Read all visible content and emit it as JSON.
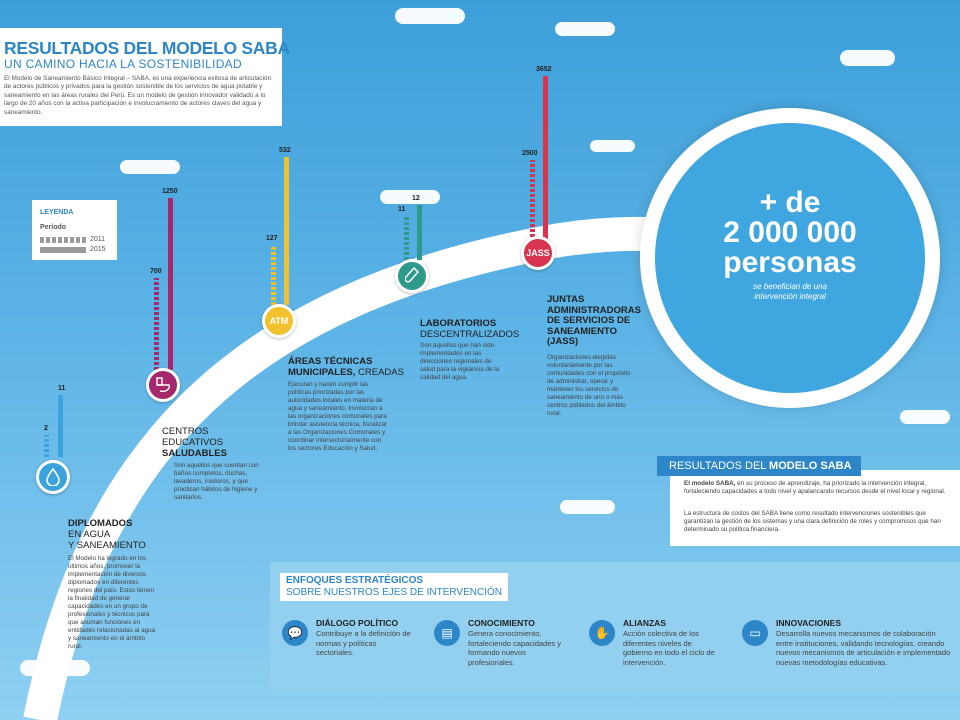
{
  "header": {
    "title": "RESULTADOS DEL MODELO SABA",
    "subtitle": "UN CAMINO HACIA LA SOSTENIBILIDAD",
    "text": "El Modelo de Saneamiento Básico Integral – SABA, es una experiencia exitosa de articulación de actores públicos y privados para la gestión sostenible de los servicios de agua potable y saneamiento en las áreas rurales del Perú. Es un modelo de gestión innovador validado a lo largo de 20 años con la activa participación e involucramiento de actores claves del agua y saneamiento."
  },
  "legend": {
    "title": "LEYENDA",
    "period": "Período",
    "y1": "2011",
    "y2": "2015"
  },
  "items": [
    {
      "v2011": "2",
      "v2015": "11",
      "title_b": "DIPLOMADOS",
      "title_r": "EN AGUA\nY SANEAMIENTO",
      "color": "#3aa3dd",
      "icon": "water-drop-icon",
      "desc": "El Modelo ha logrado en los últimos años, promover la implementación de diversos diplomados en diferentes regiones del país. Estos tienen la finalidad de generar capacidades en un grupo de profesionales y técnicos para que asuman funciones en entidades relacionadas al agua y saneamiento en el ámbito rural."
    },
    {
      "v2011": "700",
      "v2015": "1250",
      "title_r": "CENTROS\nEDUCATIVOS",
      "title_b": "SALUDABLES",
      "color": "#a4286b",
      "icon": "toilet-icon",
      "desc": "Son aquellos que cuentan con baños completos, duchas, lavaderos, inodoros, y que practican hábitos de higiene y sanitarios."
    },
    {
      "v2011": "127",
      "v2015": "532",
      "title_b": "ÁREAS TÉCNICAS\nMUNICIPALES,",
      "title_r": " CREADAS",
      "color": "#f2c12e",
      "icon": "ATM",
      "desc": "Ejecutan y hacen cumplir las políticas priorizadas por las autoridades locales en materia de agua y saneamiento. Involucran a las organizaciones comunales para brindar asistencia técnica, fiscalizar a las Organizaciones Comunales y coordinar intersectorialmente con los sectores Educación y Salud."
    },
    {
      "v2011": "11",
      "v2015": "12",
      "title_b": "LABORATORIOS",
      "title_r": "DESCENTRALIZADOS",
      "color": "#2e9a8c",
      "icon": "test-tube-icon",
      "desc": "Son aquellos que han sido implementados en las direcciones regionales de salud para la vigilancia de la calidad del agua."
    },
    {
      "v2011": "2500",
      "v2015": "3652",
      "title_b": "JUNTAS\nADMINISTRADORAS\nDE SERVICIOS DE\nSANEAMIENTO\n(JASS)",
      "title_r": "",
      "color": "#d8344f",
      "icon": "JASS",
      "desc": "Organizaciones elegidas voluntariamente por las comunidades con el propósito de administrar, operar y mantener los servicios de saneamiento de uno o más centros poblados del ámbito rural."
    }
  ],
  "big": {
    "line1": "+ de",
    "line2": "2 000 000",
    "line3": "personas",
    "sub": "se benefician de una intervención integral"
  },
  "results": {
    "tab_r": "RESULTADOS DEL ",
    "tab_b": "MODELO SABA",
    "p1_b": "El modelo SABA,",
    "p1": " en su proceso de aprendizaje, ha priorizado la intervención integral, fortaleciendo capacidades a todo nivel y apalancando recursos desde el nivel local y regional.",
    "p2": "La estructura de costos del SABA tiene como resultado intervenciones sostenibles que garantizan la gestión de los sistemas y una clara definición de roles y compromisos que han determinado su política financiera."
  },
  "enfoques": {
    "title1": "ENFOQUES ESTRATÉGICOS",
    "title2": "SOBRE NUESTROS EJES DE INTERVENCIÓN",
    "items": [
      {
        "title": "DIÁLOGO POLÍTICO",
        "desc": "Contribuye a la definición de normas y políticas sectoriales.",
        "icon": "dialogue-icon"
      },
      {
        "title": "CONOCIMIENTO",
        "desc": "Genera conocimiento, fortaleciendo capacidades y formando nuevos profesionales.",
        "icon": "book-icon"
      },
      {
        "title": "ALIANZAS",
        "desc": "Acción colectiva de los diferentes niveles de gobierno en todo el ciclo de intervención.",
        "icon": "handshake-icon"
      },
      {
        "title": "INNOVACIONES",
        "desc": "Desarrolla nuevos mecanismos de colaboración entre instituciones, validando tecnologías, creando nuevos mecanismos de articulación e implementado nuevas metodologías educativas.",
        "icon": "computer-icon"
      }
    ]
  }
}
